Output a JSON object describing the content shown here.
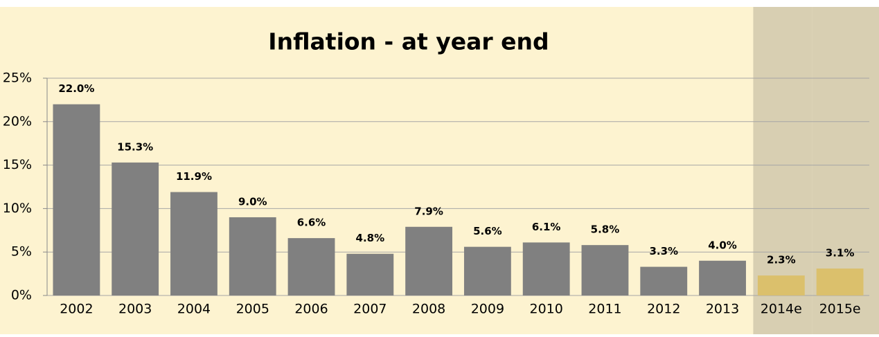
{
  "chart_data": {
    "type": "bar",
    "title": "Inflation - at year end",
    "categories": [
      "2002",
      "2003",
      "2004",
      "2005",
      "2006",
      "2007",
      "2008",
      "2009",
      "2010",
      "2011",
      "2012",
      "2013",
      "2014e",
      "2015e"
    ],
    "values": [
      22.0,
      15.3,
      11.9,
      9.0,
      6.6,
      4.8,
      7.9,
      5.6,
      6.1,
      5.8,
      3.3,
      4.0,
      2.3,
      3.1
    ],
    "value_labels": [
      "22.0%",
      "15.3%",
      "11.9%",
      "9.0%",
      "6.6%",
      "4.8%",
      "7.9%",
      "5.6%",
      "6.1%",
      "5.8%",
      "3.3%",
      "4.0%",
      "2.3%",
      "3.1%"
    ],
    "color": "#808080",
    "colors": [
      "#808080",
      "#808080",
      "#808080",
      "#808080",
      "#808080",
      "#808080",
      "#808080",
      "#808080",
      "#808080",
      "#808080",
      "#808080",
      "#808080",
      "#dbc06c",
      "#dbc06c"
    ],
    "shade_color": "#d8cfb2",
    "ylim": [
      0,
      25
    ],
    "yticks": [
      {
        "value": 0,
        "label": "0%"
      },
      {
        "value": 5,
        "label": "5%"
      },
      {
        "value": 10,
        "label": "10%"
      },
      {
        "value": 15,
        "label": "15%"
      },
      {
        "value": 20,
        "label": "20%"
      },
      {
        "value": 25,
        "label": "25%"
      }
    ],
    "grid": true
  }
}
